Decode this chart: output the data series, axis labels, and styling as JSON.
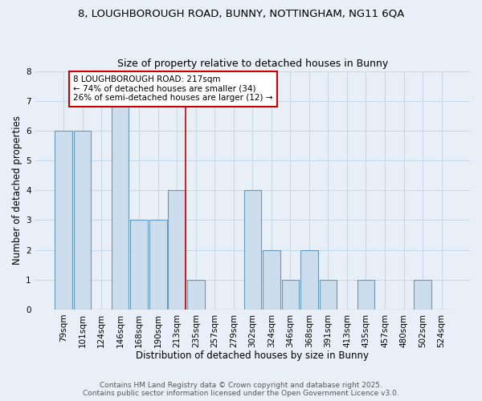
{
  "title_line1": "8, LOUGHBOROUGH ROAD, BUNNY, NOTTINGHAM, NG11 6QA",
  "title_line2": "Size of property relative to detached houses in Bunny",
  "xlabel": "Distribution of detached houses by size in Bunny",
  "ylabel": "Number of detached properties",
  "bar_labels": [
    "79sqm",
    "101sqm",
    "124sqm",
    "146sqm",
    "168sqm",
    "190sqm",
    "213sqm",
    "235sqm",
    "257sqm",
    "279sqm",
    "302sqm",
    "324sqm",
    "346sqm",
    "368sqm",
    "391sqm",
    "413sqm",
    "435sqm",
    "457sqm",
    "480sqm",
    "502sqm",
    "524sqm"
  ],
  "bar_values": [
    6,
    6,
    0,
    7,
    3,
    3,
    4,
    1,
    0,
    0,
    4,
    2,
    1,
    2,
    1,
    0,
    1,
    0,
    0,
    1,
    0
  ],
  "bar_color": "#ccdded",
  "bar_edge_color": "#6699bb",
  "vline_index": 6,
  "vline_color": "#cc0000",
  "ylim": [
    0,
    8
  ],
  "yticks": [
    0,
    1,
    2,
    3,
    4,
    5,
    6,
    7,
    8
  ],
  "annotation_title": "8 LOUGHBOROUGH ROAD: 217sqm",
  "annotation_line2": "← 74% of detached houses are smaller (34)",
  "annotation_line3": "26% of semi-detached houses are larger (12) →",
  "annotation_box_facecolor": "#ffffff",
  "annotation_box_edgecolor": "#cc0000",
  "footer_line1": "Contains HM Land Registry data © Crown copyright and database right 2025.",
  "footer_line2": "Contains public sector information licensed under the Open Government Licence v3.0.",
  "background_color": "#e8eff6",
  "grid_color": "#c8d8e8",
  "title_fontsize": 9.5,
  "subtitle_fontsize": 9,
  "axis_label_fontsize": 8.5,
  "tick_fontsize": 7.5,
  "annotation_fontsize": 7.5,
  "footer_fontsize": 6.5
}
